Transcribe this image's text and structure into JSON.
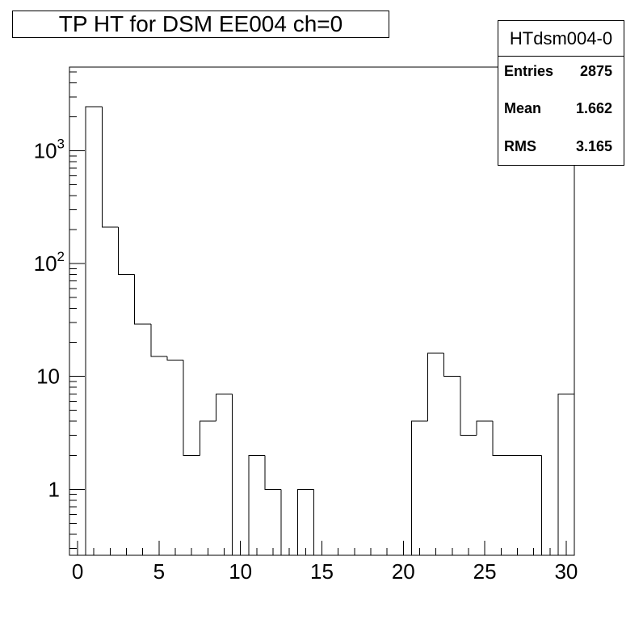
{
  "title": "TP HT for DSM EE004 ch=0",
  "stats": {
    "name": "HTdsm004-0",
    "rows": [
      {
        "label": "Entries",
        "value": "2875"
      },
      {
        "label": "Mean",
        "value": "1.662"
      },
      {
        "label": "RMS",
        "value": "3.165"
      }
    ]
  },
  "chart_data": {
    "type": "bar",
    "style": "step-histogram",
    "title": "TP HT for DSM EE004 ch=0",
    "xlabel": "",
    "ylabel": "",
    "x_scale": "linear",
    "y_scale": "log",
    "xlim": [
      -0.5,
      30.5
    ],
    "ylim": [
      0.26,
      5500
    ],
    "x_tick_labels": [
      "0",
      "5",
      "10",
      "15",
      "20",
      "25",
      "30"
    ],
    "x_tick_values": [
      0,
      5,
      10,
      15,
      20,
      25,
      30
    ],
    "y_tick_labels": [
      {
        "value": 1,
        "base": "1",
        "exp": ""
      },
      {
        "value": 10,
        "base": "10",
        "exp": ""
      },
      {
        "value": 100,
        "base": "10",
        "exp": "2"
      },
      {
        "value": 1000,
        "base": "10",
        "exp": "3"
      }
    ],
    "bin_width": 1,
    "bins": [
      {
        "x": 0,
        "value": 0
      },
      {
        "x": 1,
        "value": 2450
      },
      {
        "x": 2,
        "value": 210
      },
      {
        "x": 3,
        "value": 80
      },
      {
        "x": 4,
        "value": 29
      },
      {
        "x": 5,
        "value": 15
      },
      {
        "x": 6,
        "value": 14
      },
      {
        "x": 7,
        "value": 2
      },
      {
        "x": 8,
        "value": 4
      },
      {
        "x": 9,
        "value": 7
      },
      {
        "x": 10,
        "value": 0
      },
      {
        "x": 11,
        "value": 2
      },
      {
        "x": 12,
        "value": 1
      },
      {
        "x": 13,
        "value": 0
      },
      {
        "x": 14,
        "value": 1
      },
      {
        "x": 15,
        "value": 0
      },
      {
        "x": 16,
        "value": 0
      },
      {
        "x": 17,
        "value": 0
      },
      {
        "x": 18,
        "value": 0
      },
      {
        "x": 19,
        "value": 0
      },
      {
        "x": 20,
        "value": 0
      },
      {
        "x": 21,
        "value": 4
      },
      {
        "x": 22,
        "value": 16
      },
      {
        "x": 23,
        "value": 10
      },
      {
        "x": 24,
        "value": 3
      },
      {
        "x": 25,
        "value": 4
      },
      {
        "x": 26,
        "value": 2
      },
      {
        "x": 27,
        "value": 2
      },
      {
        "x": 28,
        "value": 2
      },
      {
        "x": 29,
        "value": 0
      },
      {
        "x": 30,
        "value": 7
      }
    ],
    "grid": false,
    "legend": "none",
    "colors": {
      "line": "#000000",
      "background": "#ffffff"
    }
  }
}
